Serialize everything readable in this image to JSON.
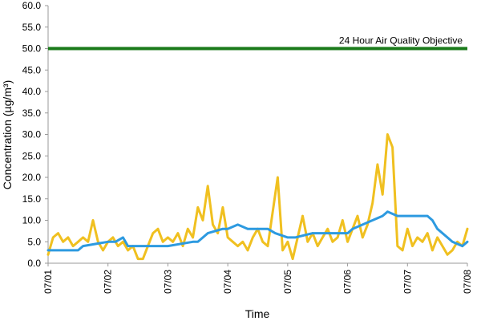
{
  "chart_data": {
    "type": "line",
    "title": "",
    "xlabel": "Time",
    "ylabel": "Concentration (µg/m³)",
    "ylim": [
      0,
      60
    ],
    "yticks": [
      "0.0",
      "5.0",
      "10.0",
      "15.0",
      "20.0",
      "25.0",
      "30.0",
      "35.0",
      "40.0",
      "45.0",
      "50.0",
      "55.0",
      "60.0"
    ],
    "xticks": [
      "07/01",
      "07/02",
      "07/03",
      "07/04",
      "07/05",
      "07/06",
      "07/07",
      "07/08"
    ],
    "grid": false,
    "legend": "none",
    "reference_line": {
      "value": 50,
      "label": "24 Hour Air Quality Objective",
      "color": "#1a7a1a"
    },
    "series": [
      {
        "color": "#f0c020",
        "x": [
          "07/01 00:00",
          "07/01 02:00",
          "07/01 04:00",
          "07/01 06:00",
          "07/01 08:00",
          "07/01 10:00",
          "07/01 12:00",
          "07/01 14:00",
          "07/01 16:00",
          "07/01 18:00",
          "07/01 20:00",
          "07/01 22:00",
          "07/02 00:00",
          "07/02 02:00",
          "07/02 04:00",
          "07/02 06:00",
          "07/02 08:00",
          "07/02 10:00",
          "07/02 12:00",
          "07/02 14:00",
          "07/02 16:00",
          "07/02 18:00",
          "07/02 20:00",
          "07/02 22:00",
          "07/03 00:00",
          "07/03 02:00",
          "07/03 04:00",
          "07/03 06:00",
          "07/03 08:00",
          "07/03 10:00",
          "07/03 12:00",
          "07/03 14:00",
          "07/03 16:00",
          "07/03 18:00",
          "07/03 20:00",
          "07/03 22:00",
          "07/04 00:00",
          "07/04 02:00",
          "07/04 04:00",
          "07/04 06:00",
          "07/04 08:00",
          "07/04 10:00",
          "07/04 12:00",
          "07/04 14:00",
          "07/04 16:00",
          "07/04 18:00",
          "07/04 20:00",
          "07/04 22:00",
          "07/05 00:00",
          "07/05 02:00",
          "07/05 04:00",
          "07/05 06:00",
          "07/05 08:00",
          "07/05 10:00",
          "07/05 12:00",
          "07/05 14:00",
          "07/05 16:00",
          "07/05 18:00",
          "07/05 20:00",
          "07/05 22:00",
          "07/06 00:00",
          "07/06 02:00",
          "07/06 04:00",
          "07/06 06:00",
          "07/06 08:00",
          "07/06 10:00",
          "07/06 12:00",
          "07/06 14:00",
          "07/06 16:00",
          "07/06 18:00",
          "07/06 20:00",
          "07/06 22:00",
          "07/07 00:00",
          "07/07 02:00",
          "07/07 04:00",
          "07/07 06:00",
          "07/07 08:00",
          "07/07 10:00",
          "07/07 12:00",
          "07/07 14:00",
          "07/07 16:00",
          "07/07 18:00",
          "07/07 20:00",
          "07/07 22:00",
          "07/08 00:00"
        ],
        "values": [
          2,
          6,
          7,
          5,
          6,
          4,
          5,
          6,
          5,
          10,
          5,
          3,
          5,
          6,
          4,
          5,
          3,
          4,
          1,
          1,
          4,
          7,
          8,
          5,
          6,
          5,
          7,
          4,
          8,
          6,
          13,
          10,
          18,
          9,
          7,
          13,
          6,
          5,
          4,
          5,
          3,
          6,
          8,
          5,
          4,
          12,
          20,
          3,
          5,
          1,
          6,
          11,
          5,
          7,
          4,
          6,
          8,
          5,
          6,
          10,
          5,
          8,
          11,
          6,
          9,
          14,
          23,
          16,
          30,
          27,
          4,
          3,
          8,
          4,
          6,
          5,
          7,
          3,
          6,
          4,
          2,
          3,
          5,
          4,
          8
        ]
      },
      {
        "color": "#2d9ae0",
        "x": [
          "07/01 00:00",
          "07/01 12:00",
          "07/01 14:00",
          "07/02 00:00",
          "07/02 03:00",
          "07/02 06:00",
          "07/02 08:00",
          "07/03 00:00",
          "07/03 10:00",
          "07/03 12:00",
          "07/03 16:00",
          "07/03 22:00",
          "07/04 00:00",
          "07/04 04:00",
          "07/04 08:00",
          "07/04 16:00",
          "07/04 19:00",
          "07/05 00:00",
          "07/05 03:00",
          "07/05 10:00",
          "07/05 14:00",
          "07/06 00:00",
          "07/06 02:00",
          "07/06 06:00",
          "07/06 10:00",
          "07/06 14:00",
          "07/06 16:00",
          "07/06 20:00",
          "07/07 00:00",
          "07/07 08:00",
          "07/07 10:00",
          "07/07 12:00",
          "07/07 16:00",
          "07/07 18:00",
          "07/07 22:00",
          "07/08 00:00"
        ],
        "values": [
          3,
          3,
          4,
          5,
          5,
          6,
          4,
          4,
          5,
          5,
          7,
          8,
          8,
          9,
          8,
          8,
          7,
          6,
          6,
          7,
          7,
          7,
          8,
          9,
          10,
          11,
          12,
          11,
          11,
          11,
          10,
          8,
          6,
          5,
          4,
          5
        ]
      }
    ]
  }
}
